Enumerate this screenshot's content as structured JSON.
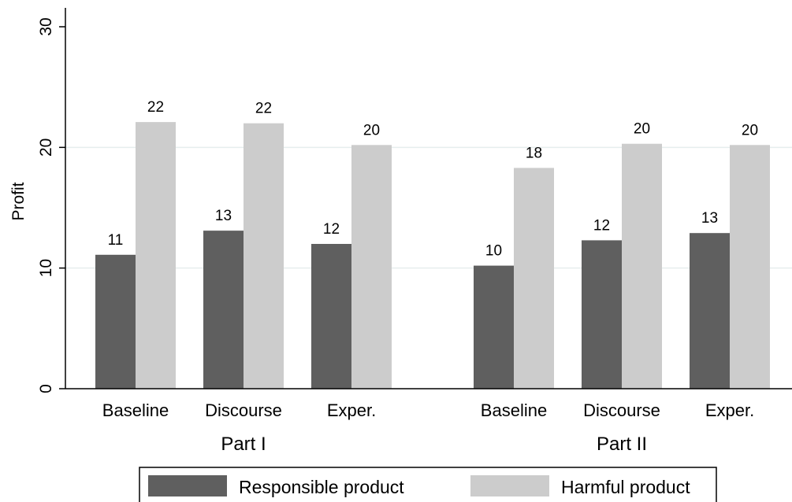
{
  "chart_data": {
    "type": "bar",
    "ylabel": "Profit",
    "ylim": [
      0,
      30
    ],
    "yticks": [
      0,
      10,
      20,
      30
    ],
    "grid": true,
    "legend_position": "bottom",
    "groups": [
      {
        "label": "Part I",
        "categories": [
          "Baseline",
          "Discourse",
          "Exper."
        ]
      },
      {
        "label": "Part II",
        "categories": [
          "Baseline",
          "Discourse",
          "Exper."
        ]
      }
    ],
    "series": [
      {
        "name": "Responsible product",
        "color": "#5f5f5f",
        "values": [
          11,
          13,
          12,
          10,
          12,
          13
        ],
        "plotted": [
          11.1,
          13.1,
          12.0,
          10.2,
          12.3,
          12.9
        ]
      },
      {
        "name": "Harmful product",
        "color": "#cccccc",
        "values": [
          22,
          22,
          20,
          18,
          20,
          20
        ],
        "plotted": [
          22.1,
          22.0,
          20.2,
          18.3,
          20.3,
          20.2
        ]
      }
    ]
  }
}
